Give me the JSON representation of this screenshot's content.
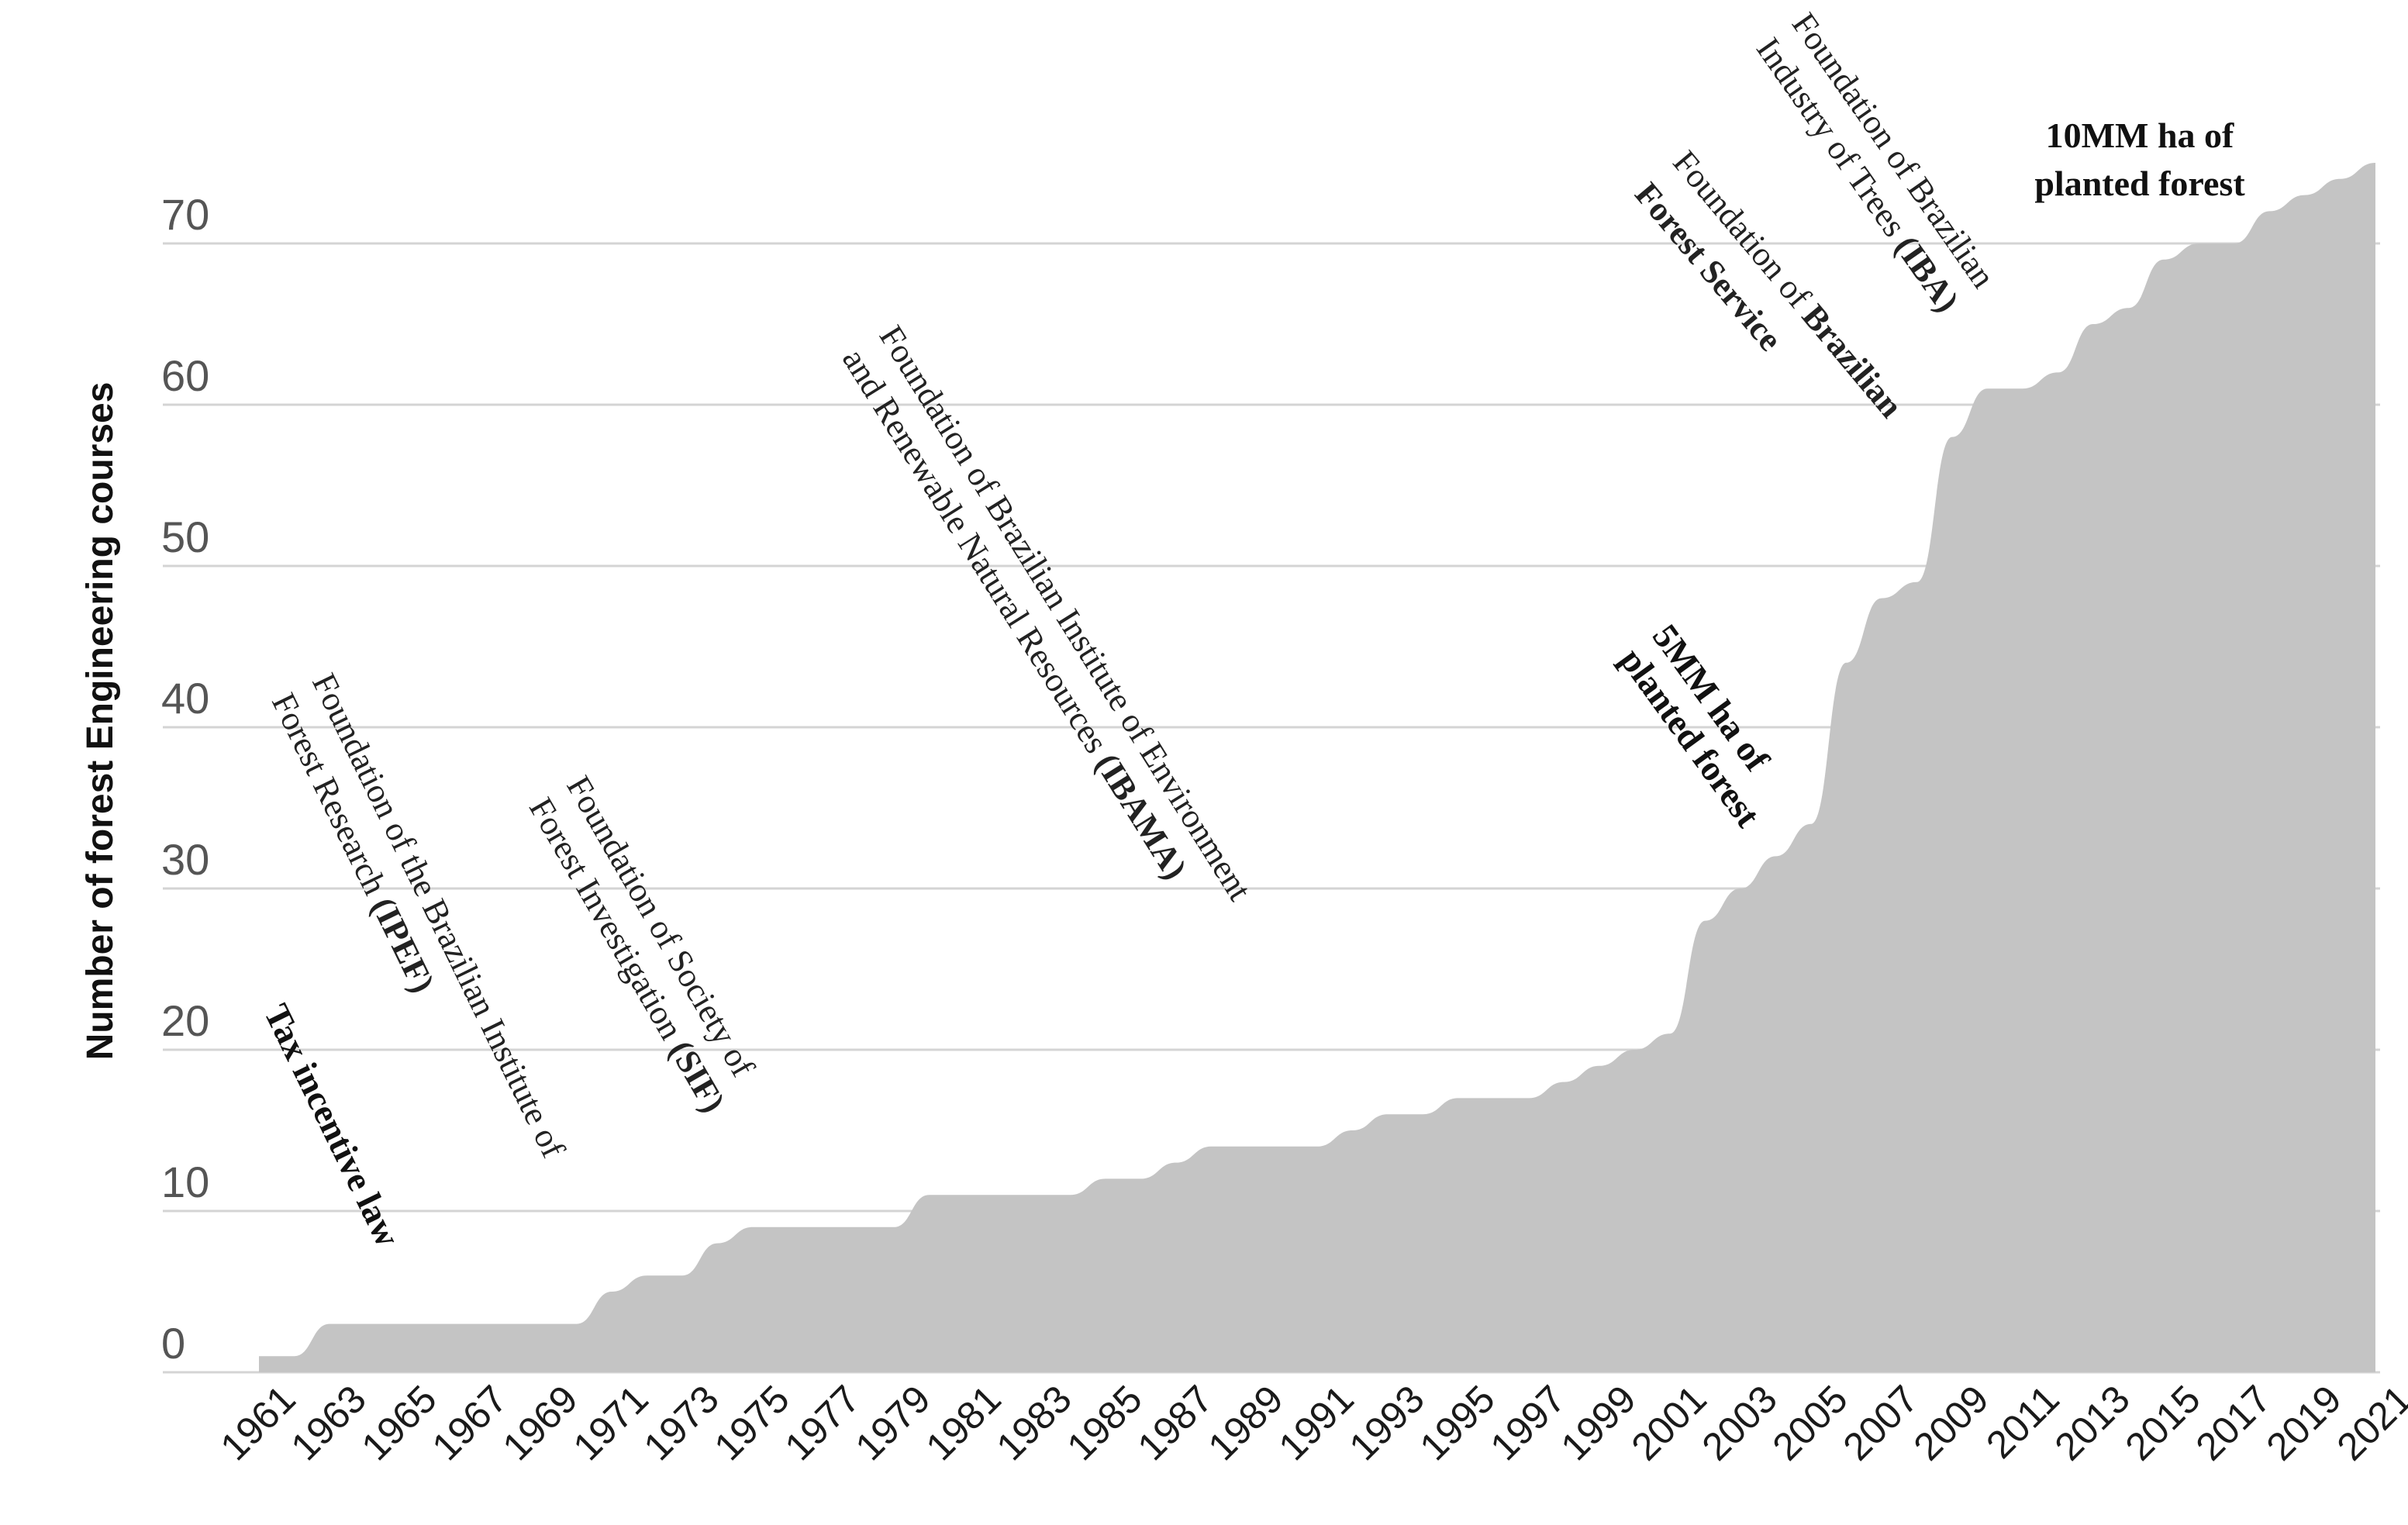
{
  "chart_data": {
    "type": "area",
    "ylabel": "Number of forest Engineering courses",
    "xlabel": "",
    "ylim": [
      0,
      75
    ],
    "yticks": [
      0,
      10,
      20,
      30,
      40,
      50,
      60,
      70
    ],
    "grid": true,
    "x_tick_labels": [
      "1961",
      "1963",
      "1965",
      "1967",
      "1969",
      "1971",
      "1973",
      "1975",
      "1977",
      "1979",
      "1981",
      "1983",
      "1985",
      "1987",
      "1989",
      "1991",
      "1993",
      "1995",
      "1997",
      "1999",
      "2001",
      "2003",
      "2005",
      "2007",
      "2009",
      "2011",
      "2013",
      "2015",
      "2017",
      "2019",
      "2021"
    ],
    "x": [
      1961,
      1962,
      1963,
      1964,
      1965,
      1966,
      1967,
      1968,
      1969,
      1970,
      1971,
      1972,
      1973,
      1974,
      1975,
      1976,
      1977,
      1978,
      1979,
      1980,
      1981,
      1982,
      1983,
      1984,
      1985,
      1986,
      1987,
      1988,
      1989,
      1990,
      1991,
      1992,
      1993,
      1994,
      1995,
      1996,
      1997,
      1998,
      1999,
      2000,
      2001,
      2002,
      2003,
      2004,
      2005,
      2006,
      2007,
      2008,
      2009,
      2010,
      2011,
      2012,
      2013,
      2014,
      2015,
      2016,
      2017,
      2018,
      2019,
      2020,
      2021
    ],
    "values": [
      1,
      1,
      3,
      3,
      3,
      3,
      3,
      3,
      3,
      3,
      5,
      6,
      6,
      8,
      9,
      9,
      9,
      9,
      9,
      11,
      11,
      11,
      11,
      11,
      12,
      12,
      13,
      14,
      14,
      14,
      14,
      15,
      16,
      16,
      17,
      17,
      17,
      18,
      19,
      20,
      21,
      28,
      30,
      32,
      34,
      44,
      48,
      49,
      58,
      61,
      61,
      62,
      65,
      66,
      69,
      70,
      70,
      72,
      73,
      74,
      75
    ],
    "annotations": [
      {
        "id": "tax-incentive",
        "lines": [
          [
            {
              "t": "Tax incentive law",
              "b": true
            }
          ]
        ]
      },
      {
        "id": "ipef",
        "lines": [
          [
            {
              "t": "Foundation of the Brazilian Institute of",
              "b": false
            }
          ],
          [
            {
              "t": "Forest Research ",
              "b": false
            },
            {
              "t": "(IPEF)",
              "b": true
            }
          ]
        ]
      },
      {
        "id": "sif",
        "lines": [
          [
            {
              "t": "Foundation of Society of",
              "b": false
            }
          ],
          [
            {
              "t": "Forest Investigation ",
              "b": false
            },
            {
              "t": "(SIF)",
              "b": true
            }
          ]
        ]
      },
      {
        "id": "ibama",
        "lines": [
          [
            {
              "t": "Foundation of Brazilian Institute of Environment",
              "b": false
            }
          ],
          [
            {
              "t": "and Renewable Natural Resources ",
              "b": false
            },
            {
              "t": "(IBAMA)",
              "b": true
            }
          ]
        ]
      },
      {
        "id": "5mm",
        "lines": [
          [
            {
              "t": "5MM ha of",
              "b": true
            }
          ],
          [
            {
              "t": "planted forest",
              "b": true
            }
          ]
        ]
      },
      {
        "id": "forest-service",
        "lines": [
          [
            {
              "t": "Foundation of ",
              "b": false
            },
            {
              "t": "Brazilian",
              "b": true
            }
          ],
          [
            {
              "t": "Forest Service",
              "b": true
            }
          ]
        ]
      },
      {
        "id": "iba",
        "lines": [
          [
            {
              "t": "Foundation of Brazilian",
              "b": false
            }
          ],
          [
            {
              "t": "Industry of Trees ",
              "b": false
            },
            {
              "t": "(IBA)",
              "b": true
            }
          ]
        ]
      },
      {
        "id": "10mm",
        "lines": [
          [
            {
              "t": "10MM ha of",
              "b": true
            }
          ],
          [
            {
              "t": "planted forest",
              "b": true
            }
          ]
        ]
      }
    ]
  }
}
